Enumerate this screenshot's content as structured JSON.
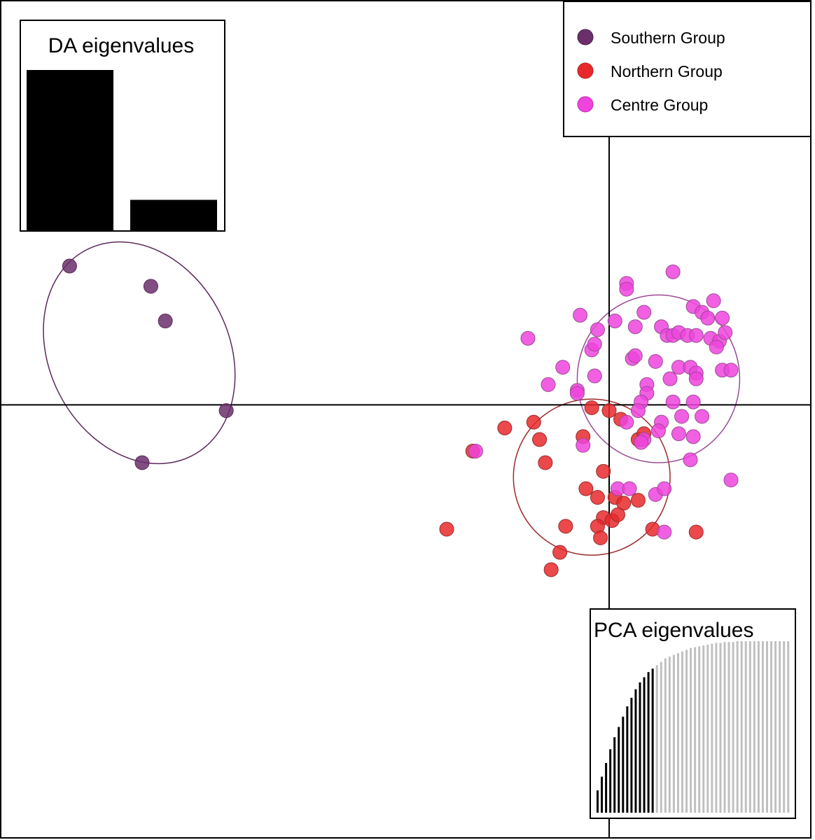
{
  "chart_data": {
    "type": "scatter",
    "title": "",
    "xlabel": "",
    "ylabel": "",
    "xlim": [
      -10.5,
      3.5
    ],
    "ylim": [
      -7.5,
      7.0
    ],
    "axes_cross": [
      0,
      0
    ],
    "grid": false,
    "legend_position": "top-right",
    "series": [
      {
        "name": "Southern Group",
        "color": "#6b2f6b",
        "points": [
          [
            -9.3,
            2.4
          ],
          [
            -7.9,
            2.05
          ],
          [
            -7.65,
            1.45
          ],
          [
            -6.6,
            -0.1
          ],
          [
            -8.05,
            -1.0
          ]
        ],
        "ellipse": {
          "cx": -8.1,
          "cy": 0.9,
          "rx": 1.55,
          "ry": 2.0,
          "angle": -27
        }
      },
      {
        "name": "Northern Group",
        "color": "#e8292b",
        "points": [
          [
            -0.3,
            -0.05
          ],
          [
            0,
            -0.1
          ],
          [
            0.2,
            -0.25
          ],
          [
            0.5,
            -0.6
          ],
          [
            0.6,
            -0.5
          ],
          [
            -0.45,
            -0.55
          ],
          [
            -1.2,
            -0.6
          ],
          [
            -1.3,
            -0.3
          ],
          [
            -1.8,
            -0.4
          ],
          [
            -1.1,
            -1.0
          ],
          [
            -0.1,
            -1.15
          ],
          [
            -0.4,
            -1.45
          ],
          [
            -0.2,
            -1.6
          ],
          [
            0.1,
            -1.6
          ],
          [
            0.25,
            -1.7
          ],
          [
            0.5,
            -1.65
          ],
          [
            -0.1,
            -1.95
          ],
          [
            0.05,
            -2.0
          ],
          [
            0.15,
            -1.9
          ],
          [
            -0.2,
            -2.1
          ],
          [
            -0.75,
            -2.1
          ],
          [
            0.75,
            -2.15
          ],
          [
            1.5,
            -2.2
          ],
          [
            -0.15,
            -2.3
          ],
          [
            -0.85,
            -2.55
          ],
          [
            -1.0,
            -2.85
          ],
          [
            -2.8,
            -2.15
          ],
          [
            -2.35,
            -0.8
          ]
        ],
        "ellipse": {
          "cx": -0.3,
          "cy": -1.25,
          "rx": 1.35,
          "ry": 1.35,
          "angle": 0
        }
      },
      {
        "name": "Centre Group",
        "color": "#ee44dd",
        "points": [
          [
            1.1,
            2.3
          ],
          [
            0.3,
            2.1
          ],
          [
            0.3,
            2.0
          ],
          [
            1.8,
            1.8
          ],
          [
            0.6,
            1.6
          ],
          [
            1.45,
            1.7
          ],
          [
            1.6,
            1.6
          ],
          [
            1.7,
            1.5
          ],
          [
            1.95,
            1.5
          ],
          [
            -0.5,
            1.55
          ],
          [
            0.1,
            1.45
          ],
          [
            -0.2,
            1.3
          ],
          [
            0.45,
            1.35
          ],
          [
            0.9,
            1.35
          ],
          [
            1.0,
            1.2
          ],
          [
            1.1,
            1.2
          ],
          [
            1.2,
            1.25
          ],
          [
            1.35,
            1.2
          ],
          [
            1.5,
            1.2
          ],
          [
            1.75,
            1.15
          ],
          [
            1.9,
            1.1
          ],
          [
            2.0,
            1.25
          ],
          [
            1.85,
            1.0
          ],
          [
            -1.4,
            1.15
          ],
          [
            -0.3,
            0.95
          ],
          [
            -0.25,
            1.05
          ],
          [
            0.4,
            0.8
          ],
          [
            0.45,
            0.85
          ],
          [
            0.8,
            0.75
          ],
          [
            1.2,
            0.65
          ],
          [
            1.4,
            0.65
          ],
          [
            1.5,
            0.55
          ],
          [
            1.95,
            0.6
          ],
          [
            2.1,
            0.6
          ],
          [
            -0.8,
            0.65
          ],
          [
            -0.25,
            0.5
          ],
          [
            0.65,
            0.35
          ],
          [
            1.05,
            0.45
          ],
          [
            1.5,
            0.45
          ],
          [
            -1.05,
            0.35
          ],
          [
            -0.55,
            0.25
          ],
          [
            -0.55,
            0.2
          ],
          [
            0.65,
            0.2
          ],
          [
            0.55,
            0.05
          ],
          [
            1.1,
            0.05
          ],
          [
            1.45,
            0.05
          ],
          [
            0.5,
            -0.1
          ],
          [
            0.9,
            -0.3
          ],
          [
            1.25,
            -0.2
          ],
          [
            1.6,
            -0.2
          ],
          [
            0.85,
            -0.45
          ],
          [
            1.2,
            -0.5
          ],
          [
            0.6,
            -0.6
          ],
          [
            0.55,
            -0.65
          ],
          [
            1.45,
            -0.55
          ],
          [
            -0.45,
            -0.7
          ],
          [
            -2.3,
            -0.8
          ],
          [
            1.4,
            -0.95
          ],
          [
            0.15,
            -1.45
          ],
          [
            0.35,
            -1.45
          ],
          [
            0.8,
            -1.55
          ],
          [
            0.95,
            -1.45
          ],
          [
            2.1,
            -1.3
          ],
          [
            0.95,
            -2.2
          ],
          [
            0.3,
            -0.3
          ]
        ],
        "ellipse": {
          "cx": 0.85,
          "cy": 0.45,
          "rx": 1.4,
          "ry": 1.45,
          "angle": 0
        }
      }
    ],
    "insets": [
      {
        "title": "DA eigenvalues",
        "type": "bar",
        "values": [
          1.0,
          0.19
        ],
        "color": "#000000",
        "position": "top-left"
      },
      {
        "title": "PCA eigenvalues",
        "type": "bar",
        "retained": 14,
        "retained_color": "#000000",
        "other_color": "#c0c0c0",
        "values": [
          0.13,
          0.21,
          0.29,
          0.37,
          0.44,
          0.5,
          0.56,
          0.62,
          0.67,
          0.72,
          0.76,
          0.79,
          0.82,
          0.84,
          0.86,
          0.88,
          0.9,
          0.91,
          0.92,
          0.93,
          0.94,
          0.95,
          0.96,
          0.965,
          0.97,
          0.975,
          0.98,
          0.985,
          0.99,
          0.99,
          0.995,
          0.995,
          0.995,
          1.0,
          1.0,
          1.0,
          1.0,
          1.0,
          1.0,
          1.0,
          1.0,
          1.0,
          1.0,
          1.0,
          1.0,
          1.0
        ],
        "position": "bottom-right"
      }
    ]
  }
}
